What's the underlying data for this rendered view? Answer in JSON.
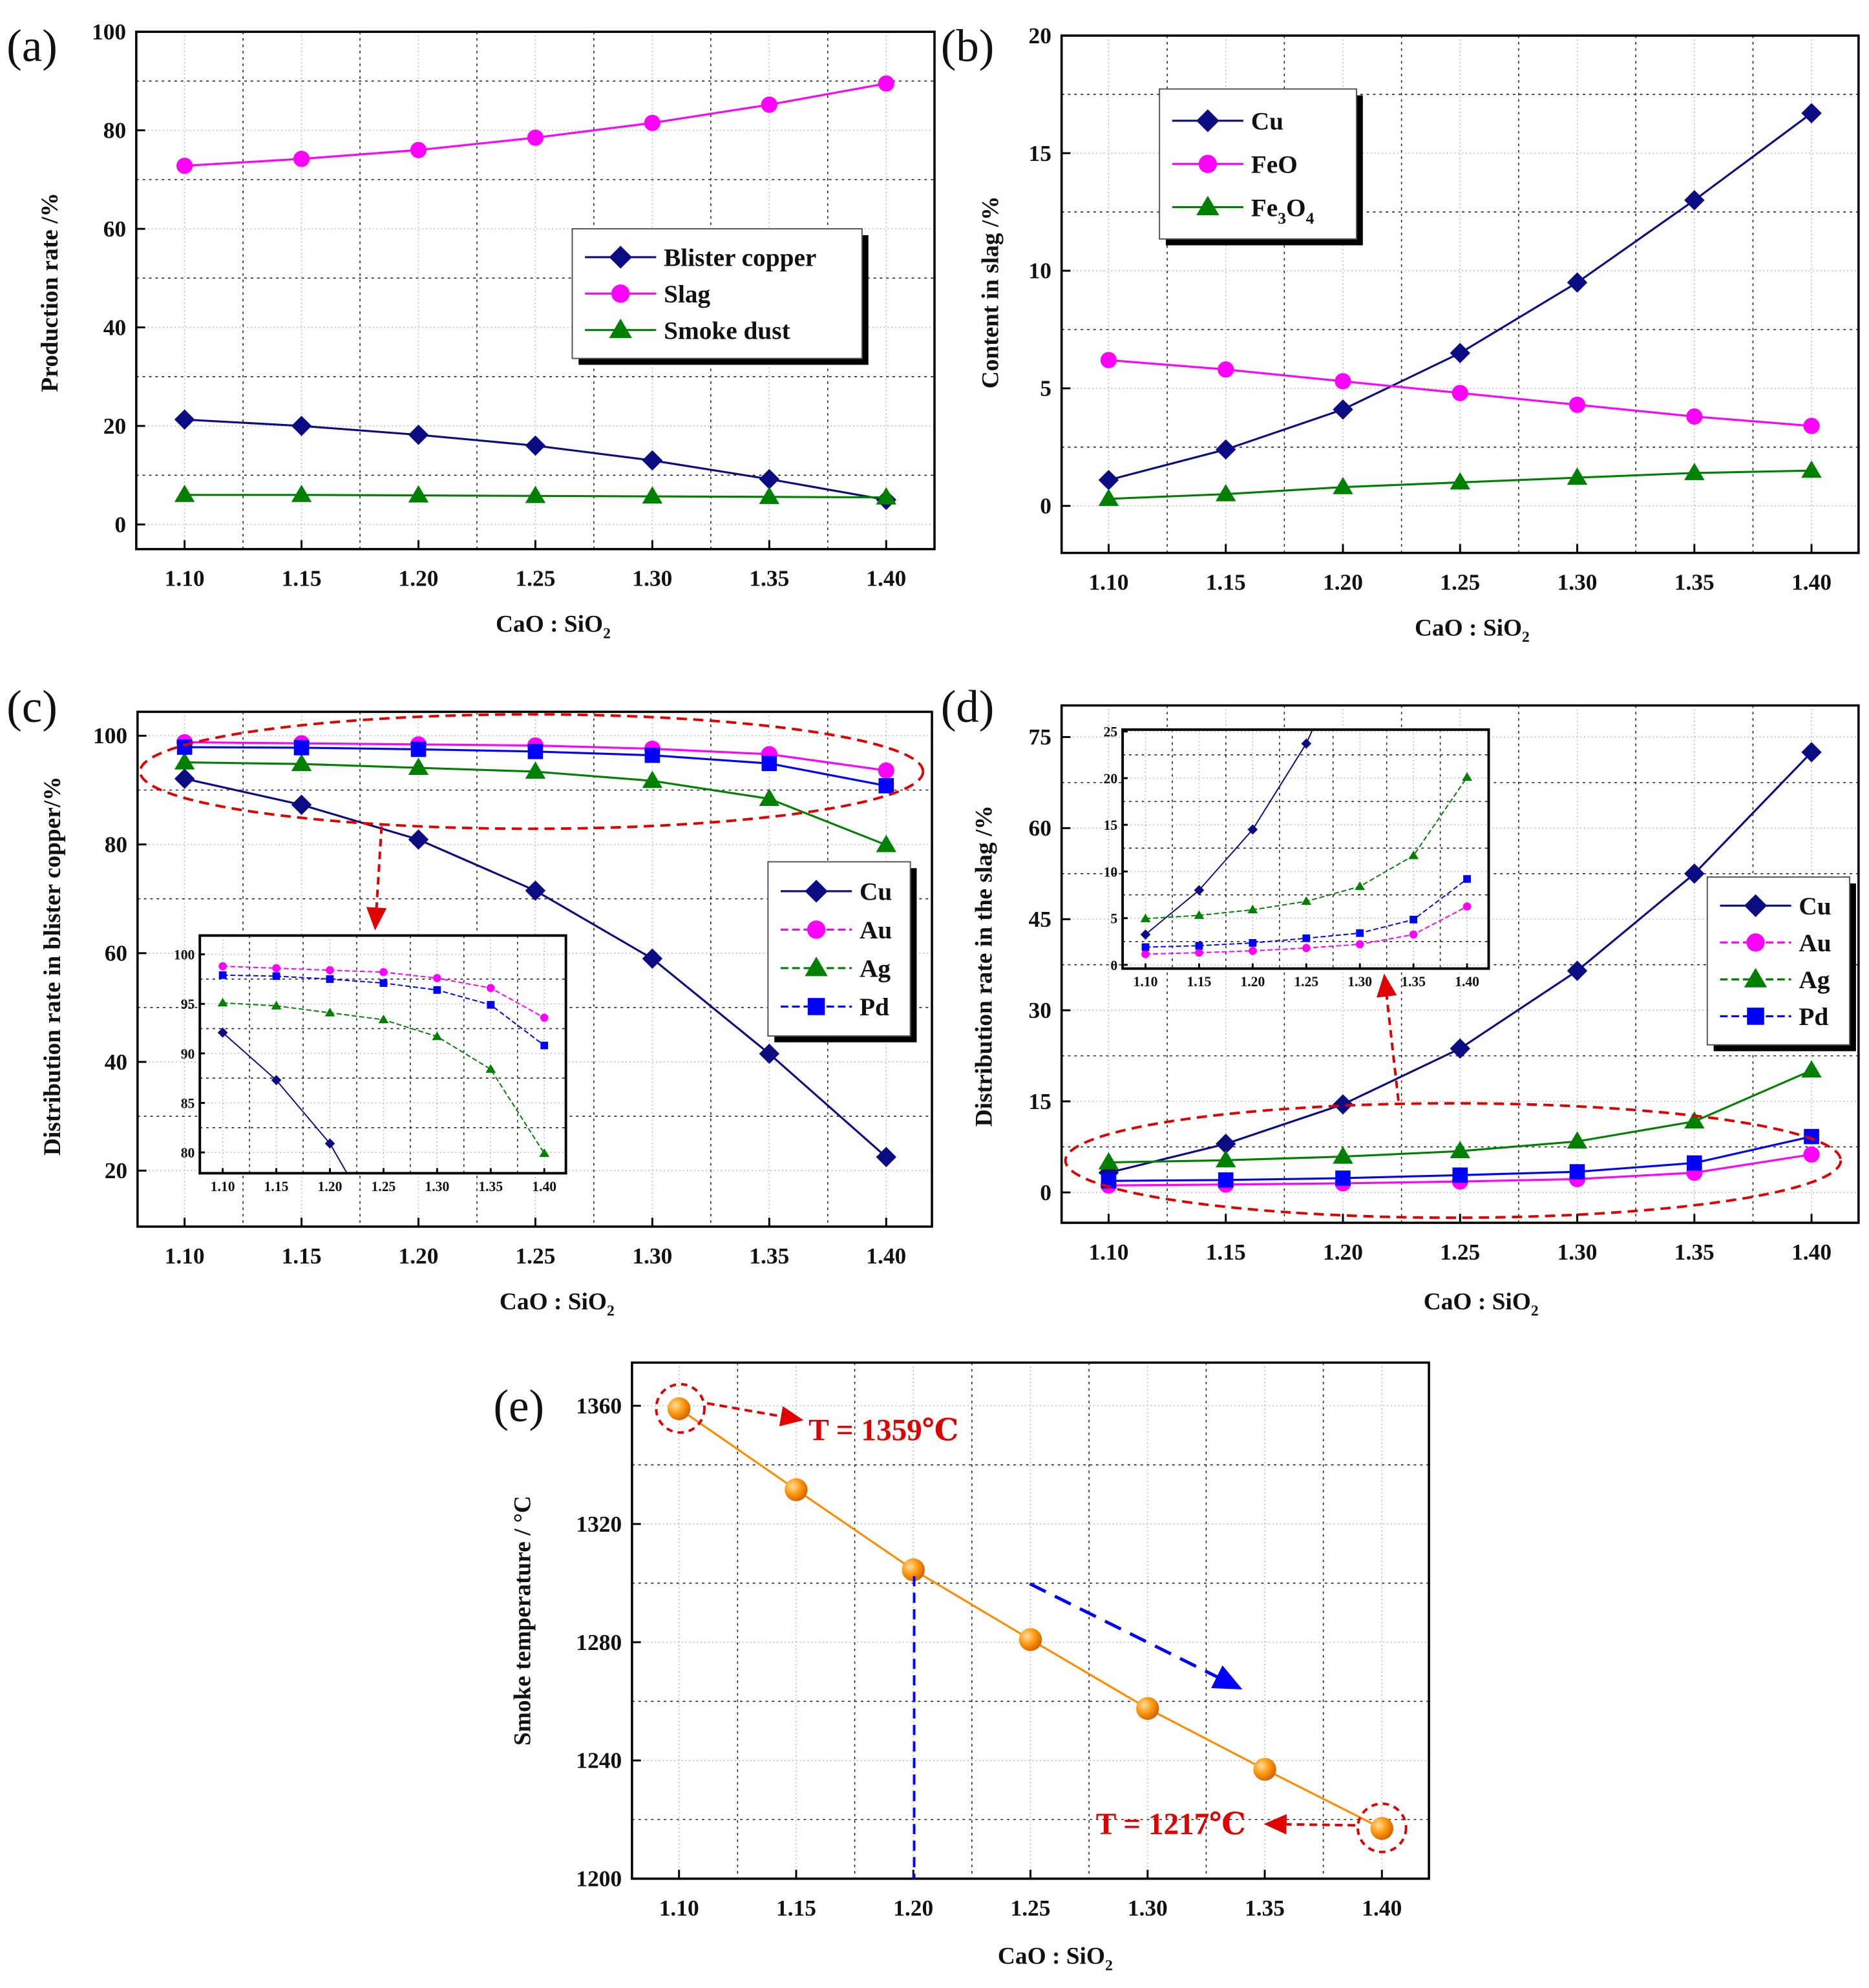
{
  "colors": {
    "cu": "#0c0c82",
    "mag": "#ff00ff",
    "green": "#008000",
    "blue": "#0000ff",
    "orange": "#ff8c00",
    "red": "#e00000"
  },
  "chart_data": [
    {
      "id": "a",
      "panel_label": "(a)",
      "type": "line",
      "x": [
        1.1,
        1.15,
        1.2,
        1.25,
        1.3,
        1.35,
        1.4
      ],
      "xticks": [
        "1.10",
        "1.15",
        "1.20",
        "1.25",
        "1.30",
        "1.35",
        "1.40"
      ],
      "yticks": [
        "0",
        "20",
        "40",
        "60",
        "80",
        "100"
      ],
      "xlabel": "CaO : SiO",
      "xlabel_sub": "2",
      "ylabel": "Production rate /%",
      "ylim": [
        -5,
        100
      ],
      "grid": true,
      "legend": "center-right",
      "series": [
        {
          "name": "Blister copper",
          "marker": "diamond",
          "color": "#0c0c82",
          "values": [
            21.3,
            20.0,
            18.2,
            16.0,
            13.0,
            9.2,
            5.0
          ]
        },
        {
          "name": "Slag",
          "marker": "circle",
          "color": "#ff00ff",
          "values": [
            72.8,
            74.2,
            76.0,
            78.5,
            81.5,
            85.2,
            89.5
          ]
        },
        {
          "name": "Smoke dust",
          "marker": "triangle",
          "color": "#008000",
          "values": [
            6.0,
            6.0,
            5.9,
            5.8,
            5.7,
            5.6,
            5.5
          ]
        }
      ]
    },
    {
      "id": "b",
      "panel_label": "(b)",
      "type": "line",
      "x": [
        1.1,
        1.15,
        1.2,
        1.25,
        1.3,
        1.35,
        1.4
      ],
      "xticks": [
        "1.10",
        "1.15",
        "1.20",
        "1.25",
        "1.30",
        "1.35",
        "1.40"
      ],
      "yticks": [
        "0",
        "5",
        "10",
        "15",
        "20"
      ],
      "xlabel": "CaO : SiO",
      "xlabel_sub": "2",
      "ylabel": "Content in slag /%",
      "ylim": [
        -2,
        20
      ],
      "grid": true,
      "legend": "top-left",
      "series": [
        {
          "name": "Cu",
          "marker": "diamond",
          "color": "#0c0c82",
          "values": [
            1.1,
            2.4,
            4.1,
            6.5,
            9.5,
            13.0,
            16.7
          ]
        },
        {
          "name": "FeO",
          "marker": "circle",
          "color": "#ff00ff",
          "values": [
            6.2,
            5.8,
            5.3,
            4.8,
            4.3,
            3.8,
            3.4
          ]
        },
        {
          "name": "Fe3O4",
          "marker": "triangle",
          "color": "#008000",
          "values": [
            0.3,
            0.5,
            0.8,
            1.0,
            1.2,
            1.4,
            1.5
          ]
        }
      ]
    },
    {
      "id": "c",
      "panel_label": "(c)",
      "type": "line",
      "x": [
        1.1,
        1.15,
        1.2,
        1.25,
        1.3,
        1.35,
        1.4
      ],
      "xticks": [
        "1.10",
        "1.15",
        "1.20",
        "1.25",
        "1.30",
        "1.35",
        "1.40"
      ],
      "yticks": [
        "20",
        "40",
        "60",
        "80",
        "100"
      ],
      "xlabel": "CaO : SiO",
      "xlabel_sub": "2",
      "ylabel": "Distribution rate in blister copper/%",
      "ylim": [
        9.7,
        104.4
      ],
      "grid": true,
      "legend": "center-right",
      "series": [
        {
          "name": "Cu",
          "marker": "diamond",
          "color": "#0c0c82",
          "values": [
            92.1,
            87.3,
            80.9,
            71.5,
            59.0,
            41.5,
            22.5
          ]
        },
        {
          "name": "Au",
          "marker": "circle",
          "color": "#ff00ff",
          "values": [
            98.8,
            98.6,
            98.4,
            98.2,
            97.6,
            96.6,
            93.6
          ]
        },
        {
          "name": "Ag",
          "marker": "triangle",
          "color": "#008000",
          "values": [
            95.1,
            94.8,
            94.1,
            93.4,
            91.7,
            88.4,
            79.9
          ]
        },
        {
          "name": "Pd",
          "marker": "square",
          "color": "#0000ff",
          "values": [
            97.9,
            97.8,
            97.5,
            97.1,
            96.4,
            94.9,
            90.8
          ]
        }
      ],
      "inset": {
        "yticks": [
          "80",
          "85",
          "90",
          "95",
          "100"
        ],
        "ylim": [
          77.9,
          101.9
        ]
      }
    },
    {
      "id": "d",
      "panel_label": "(d)",
      "type": "line",
      "x": [
        1.1,
        1.15,
        1.2,
        1.25,
        1.3,
        1.35,
        1.4
      ],
      "xticks": [
        "1.10",
        "1.15",
        "1.20",
        "1.25",
        "1.30",
        "1.35",
        "1.40"
      ],
      "yticks": [
        "0",
        "15",
        "30",
        "45",
        "60",
        "75"
      ],
      "xlabel": "CaO : SiO",
      "xlabel_sub": "2",
      "ylabel": "Distribution rate in the slag /%",
      "ylim": [
        -5,
        80.2
      ],
      "grid": true,
      "legend": "center-right",
      "series": [
        {
          "name": "Cu",
          "marker": "diamond",
          "color": "#0c0c82",
          "values": [
            3.25,
            8.0,
            14.5,
            23.7,
            36.5,
            52.5,
            72.5
          ]
        },
        {
          "name": "Au",
          "marker": "circle",
          "color": "#ff00ff",
          "values": [
            1.15,
            1.3,
            1.5,
            1.8,
            2.2,
            3.25,
            6.25
          ]
        },
        {
          "name": "Ag",
          "marker": "triangle",
          "color": "#008000",
          "values": [
            4.95,
            5.3,
            5.9,
            6.8,
            8.4,
            11.7,
            20.1
          ]
        },
        {
          "name": "Pd",
          "marker": "square",
          "color": "#0000ff",
          "values": [
            1.9,
            2.05,
            2.35,
            2.85,
            3.4,
            4.85,
            9.2
          ]
        }
      ],
      "inset": {
        "yticks": [
          "0",
          "5",
          "10",
          "15",
          "20",
          "25"
        ],
        "ylim": [
          -0.4,
          25.2
        ]
      }
    },
    {
      "id": "e",
      "panel_label": "(e)",
      "type": "line",
      "x": [
        1.1,
        1.15,
        1.2,
        1.25,
        1.3,
        1.35,
        1.4
      ],
      "xticks": [
        "1.10",
        "1.15",
        "1.20",
        "1.25",
        "1.30",
        "1.35",
        "1.40"
      ],
      "yticks": [
        "1200",
        "1240",
        "1280",
        "1320",
        "1360"
      ],
      "xlabel": "CaO : SiO",
      "xlabel_sub": "2",
      "ylabel": "Smoke temperature / °C",
      "ylim": [
        1200,
        1374.6
      ],
      "grid": true,
      "series": [
        {
          "name": "Smoke temperature",
          "marker": "sphere",
          "color": "#ff8c00",
          "values": [
            1359,
            1331.6,
            1304.5,
            1280.9,
            1257.6,
            1237,
            1217
          ]
        }
      ],
      "annotations": {
        "max_label": "T = 1359℃",
        "min_label": "T = 1217℃"
      }
    }
  ]
}
